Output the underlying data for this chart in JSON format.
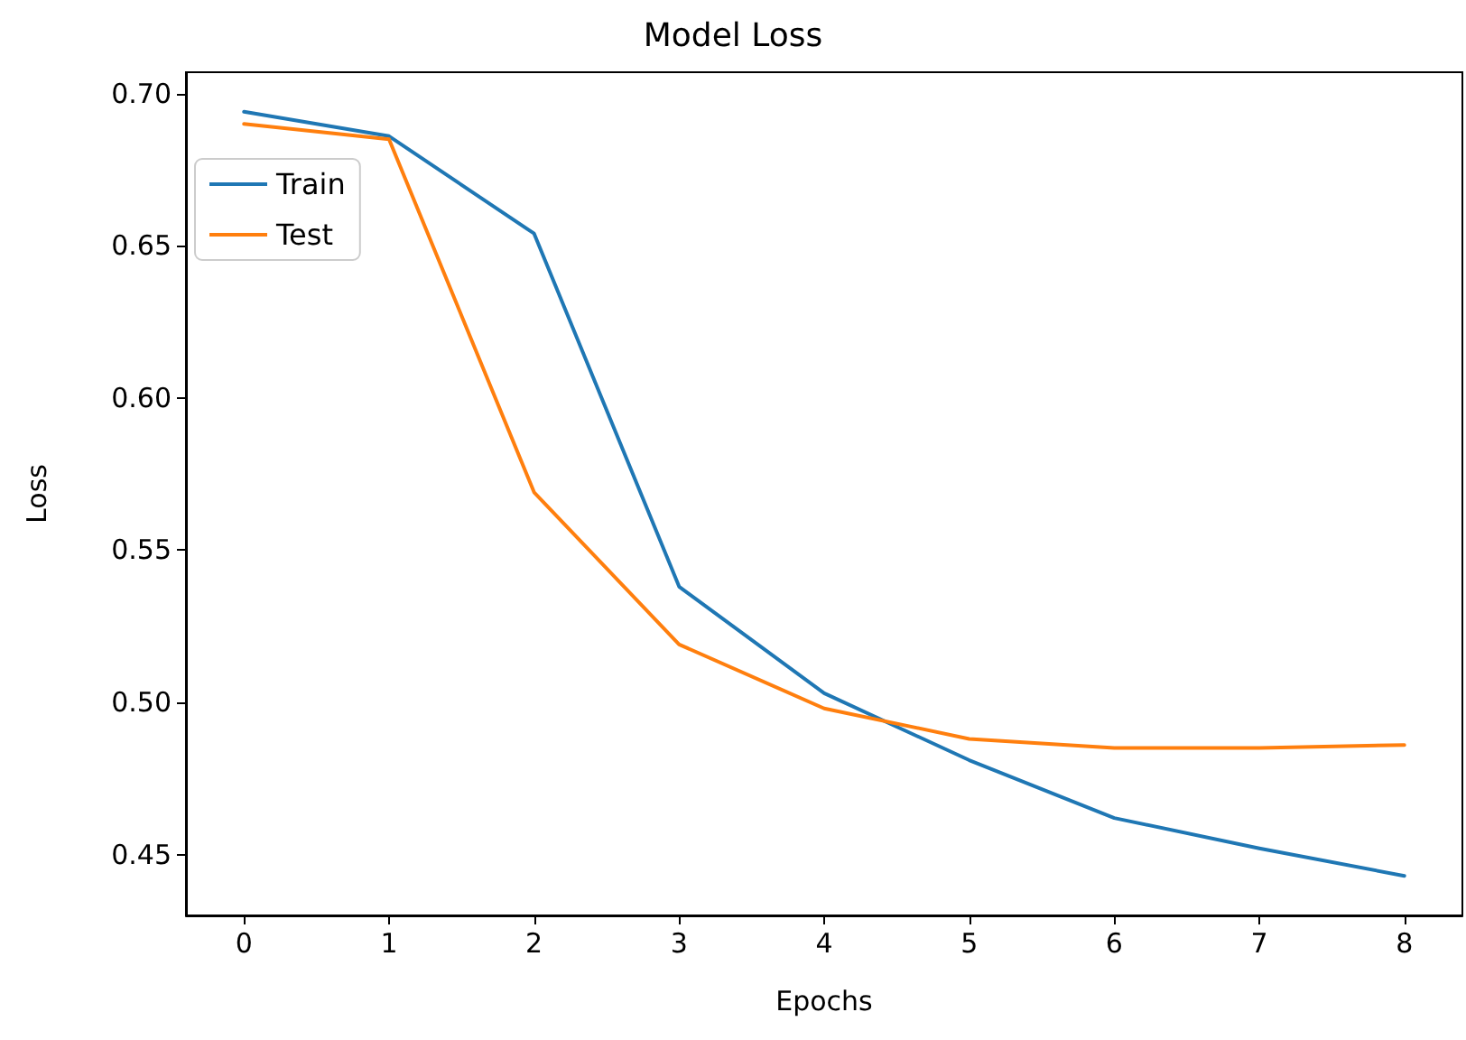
{
  "chart_data": {
    "type": "line",
    "title": "Model Loss",
    "xlabel": "Epochs",
    "ylabel": "Loss",
    "x": [
      0,
      1,
      2,
      3,
      4,
      5,
      6,
      7,
      8
    ],
    "series": [
      {
        "name": "Train",
        "color": "#1f77b4",
        "values": [
          0.694,
          0.686,
          0.654,
          0.538,
          0.503,
          0.481,
          0.462,
          0.452,
          0.443
        ]
      },
      {
        "name": "Test",
        "color": "#ff7f0e",
        "values": [
          0.69,
          0.685,
          0.569,
          0.519,
          0.498,
          0.488,
          0.485,
          0.485,
          0.486
        ]
      }
    ],
    "xlim": [
      -0.4,
      8.4
    ],
    "xticks": [
      0,
      1,
      2,
      3,
      4,
      5,
      6,
      7,
      8
    ],
    "ylim": [
      0.43,
      0.707
    ],
    "yticks": [
      0.45,
      {
        "value": 0.5,
        "label": "0.50"
      },
      0.55,
      {
        "value": 0.6,
        "label": "0.60"
      },
      0.65,
      {
        "value": 0.7,
        "label": "0.70"
      }
    ],
    "grid": false,
    "legend": "top left",
    "marker": "none",
    "line_style": "solid"
  }
}
